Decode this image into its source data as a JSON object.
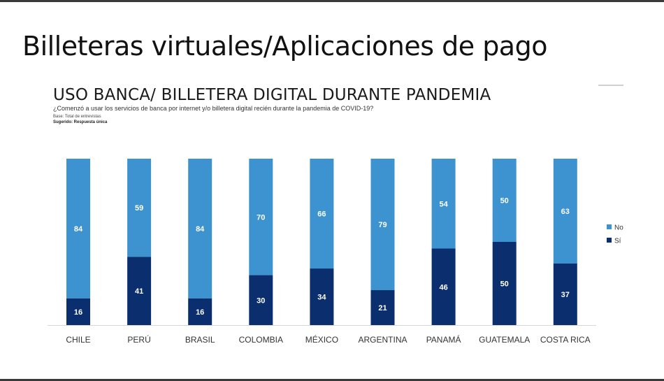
{
  "slide": {
    "title": "Billeteras virtuales/Aplicaciones de pago"
  },
  "chart_data": {
    "type": "bar",
    "stacked": true,
    "title": "USO BANCA/ BILLETERA DIGITAL DURANTE PANDEMIA",
    "subtitle": "¿Comenzó a usar los servicios de banca por internet y/o billetera digital recién durante la pandemia de COVID-19?",
    "base_note": "Base: Total de entrevistas",
    "sugerido_note": "Sugerido: Respuesta única",
    "categories": [
      "CHILE",
      "PERÚ",
      "BRASIL",
      "COLOMBIA",
      "MÉXICO",
      "ARGENTINA",
      "PANAMÁ",
      "GUATEMALA",
      "COSTA RICA"
    ],
    "series": [
      {
        "name": "Sí",
        "color": "#0b2f6e",
        "values": [
          16,
          41,
          16,
          30,
          34,
          21,
          46,
          50,
          37
        ]
      },
      {
        "name": "No",
        "color": "#3d93cf",
        "values": [
          84,
          59,
          84,
          70,
          66,
          79,
          54,
          50,
          63
        ]
      }
    ],
    "legend": [
      "No",
      "Sí"
    ],
    "legend_position": "right",
    "ylim": [
      0,
      100
    ],
    "xlabel": "",
    "ylabel": "",
    "grid": false
  }
}
